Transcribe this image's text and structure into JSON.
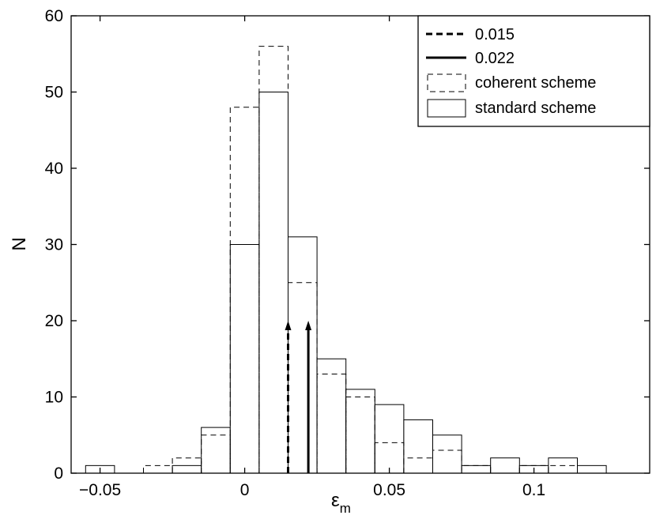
{
  "chart_data": {
    "type": "bar",
    "title": "",
    "xlabel": "ε",
    "xlabel_subscript": "m",
    "ylabel": "N",
    "xlim": [
      -0.06,
      0.14
    ],
    "ylim": [
      0,
      60
    ],
    "x_ticks": [
      -0.05,
      0,
      0.05,
      0.1
    ],
    "x_tick_labels": [
      "−0.05",
      "0",
      "0.05",
      "0.1"
    ],
    "y_ticks": [
      0,
      10,
      20,
      30,
      40,
      50,
      60
    ],
    "y_tick_labels": [
      "0",
      "10",
      "20",
      "30",
      "40",
      "50",
      "60"
    ],
    "bin_width": 0.01,
    "bin_centers": [
      -0.05,
      -0.04,
      -0.03,
      -0.02,
      -0.01,
      0.0,
      0.01,
      0.02,
      0.03,
      0.04,
      0.05,
      0.06,
      0.07,
      0.08,
      0.09,
      0.1,
      0.11,
      0.12
    ],
    "series": [
      {
        "name": "coherent scheme",
        "style": "dashed",
        "color": "#000000",
        "values": [
          0,
          0,
          1,
          2,
          5,
          48,
          56,
          25,
          13,
          10,
          4,
          2,
          3,
          1,
          0,
          1,
          1,
          0
        ]
      },
      {
        "name": "standard scheme",
        "style": "solid",
        "color": "#000000",
        "values": [
          1,
          0,
          0,
          1,
          6,
          30,
          50,
          31,
          15,
          11,
          9,
          7,
          5,
          1,
          2,
          1,
          2,
          1
        ]
      }
    ],
    "markers": [
      {
        "name": "0.015",
        "x": 0.015,
        "height": 20,
        "style": "dashed"
      },
      {
        "name": "0.022",
        "x": 0.022,
        "height": 20,
        "style": "solid"
      }
    ],
    "legend": {
      "placement": "top-right",
      "entries": [
        "0.015",
        "0.022",
        "coherent scheme",
        "standard scheme"
      ]
    },
    "grid": false
  }
}
